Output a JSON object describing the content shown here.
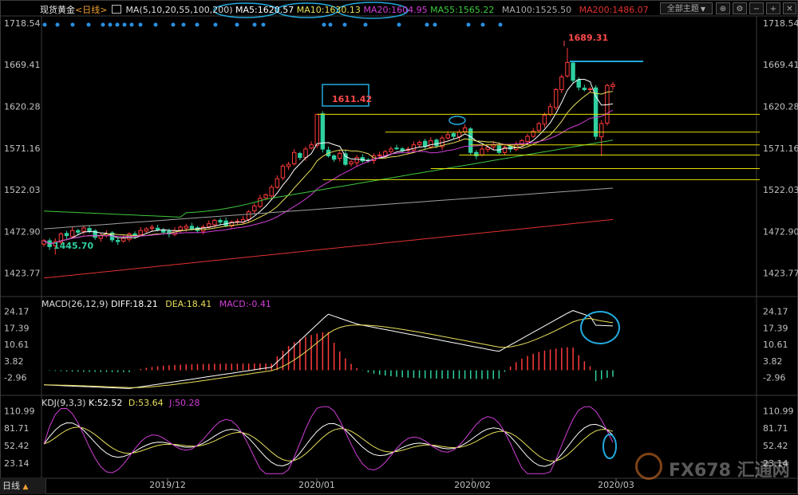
{
  "header": {
    "title": "现货黄金",
    "period": "<日线>",
    "ma_label": "MA(5,10,20,55,100,200)",
    "ma5": "MA5:1620.57",
    "ma10": "MA10:1630.13",
    "ma20": "MA20:1604.95",
    "ma55": "MA55:1565.22",
    "ma100": "MA100:1525.50",
    "ma200": "MA200:1486.07",
    "theme_button": "全部主题",
    "theme_arrow": "▼"
  },
  "macd_header": {
    "label": "MACD(26,12,9)",
    "diff": "DIFF:18.21",
    "dea": "DEA:18.41",
    "macd": "MACD:-0.41"
  },
  "kdj_header": {
    "label": "KDJ(9,3,3)",
    "k": "K:52.52",
    "d": "D:53.64",
    "j": "J:50.28"
  },
  "annotations": {
    "high_label": "1689.31",
    "boxed_label": "1611.42",
    "low_label": "1445.70"
  },
  "bottom_bar": {
    "label": "日线",
    "arrow": "▲"
  },
  "watermark": {
    "text": "FX678 汇通网"
  },
  "colors": {
    "up": "#ff3b3b",
    "down": "#2fd0a0",
    "ma5": "#ffffff",
    "ma10": "#e8e05a",
    "ma20": "#d23ed8",
    "ma55": "#3ec83e",
    "ma100": "#a0a0a0",
    "ma200": "#e23030",
    "annot": "#22aadd",
    "hline": "#e6e000"
  },
  "chart_data": [
    {
      "type": "candlestick",
      "title": "现货黄金 日线",
      "yticks": [
        "1718.54",
        "1669.41",
        "1620.28",
        "1571.16",
        "1522.03",
        "1472.90",
        "1423.77"
      ],
      "xticks": [
        "2019/12",
        "2020/01",
        "2020/02",
        "2020/03"
      ],
      "ylim": [
        1400,
        1725
      ],
      "closes": [
        1462,
        1455,
        1461,
        1470,
        1468,
        1474,
        1472,
        1477,
        1473,
        1466,
        1468,
        1470,
        1463,
        1461,
        1465,
        1470,
        1468,
        1474,
        1476,
        1478,
        1475,
        1472,
        1470,
        1474,
        1478,
        1479,
        1476,
        1474,
        1478,
        1482,
        1486,
        1484,
        1480,
        1484,
        1485,
        1487,
        1496,
        1503,
        1512,
        1516,
        1525,
        1535,
        1550,
        1552,
        1566,
        1560,
        1570,
        1575,
        1611,
        1570,
        1562,
        1558,
        1565,
        1552,
        1555,
        1560,
        1556,
        1557,
        1562,
        1563,
        1567,
        1570,
        1571,
        1568,
        1570,
        1575,
        1578,
        1573,
        1580,
        1574,
        1583,
        1587,
        1585,
        1590,
        1595,
        1566,
        1562,
        1570,
        1572,
        1575,
        1566,
        1572,
        1570,
        1575,
        1580,
        1585,
        1591,
        1600,
        1610,
        1620,
        1640,
        1655,
        1672,
        1651,
        1643,
        1640,
        1641,
        1585,
        1600,
        1645,
        1646
      ],
      "ma_values_latest": {
        "MA5": 1620.57,
        "MA10": 1630.13,
        "MA20": 1604.95,
        "MA55": 1565.22,
        "MA100": 1525.5,
        "MA200": 1486.07
      },
      "annotations": [
        {
          "text": "1689.31",
          "kind": "high"
        },
        {
          "text": "1611.42",
          "kind": "boxed"
        },
        {
          "text": "1445.70",
          "kind": "low"
        }
      ]
    },
    {
      "type": "bar+line",
      "title": "MACD(26,12,9)",
      "yticks": [
        "24.17",
        "17.39",
        "10.61",
        "3.82",
        "-2.96"
      ],
      "ylim": [
        -9,
        27
      ],
      "series_latest": {
        "DIFF": 18.21,
        "DEA": 18.41,
        "MACD": -0.41
      }
    },
    {
      "type": "line",
      "title": "KDJ(9,3,3)",
      "yticks": [
        "110.99",
        "81.71",
        "52.42",
        "23.14"
      ],
      "ylim": [
        0,
        125
      ],
      "series_latest": {
        "K": 52.52,
        "D": 53.64,
        "J": 50.28
      }
    }
  ]
}
